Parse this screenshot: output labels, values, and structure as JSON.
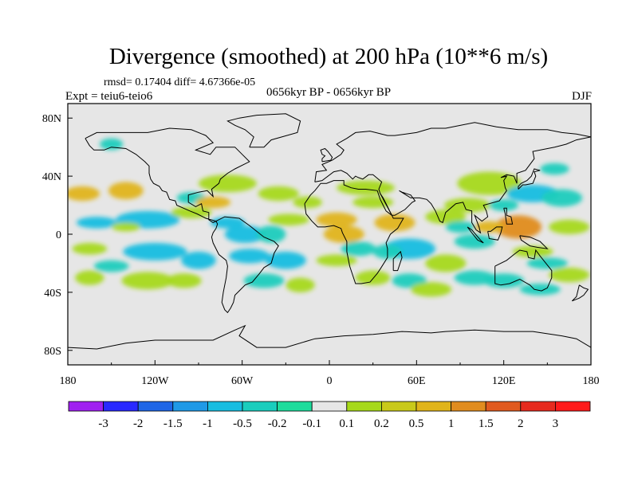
{
  "chart_data": {
    "type": "heatmap",
    "title": "Divergence (smoothed) at 200 hPa (10**6 m/s)",
    "stats_text": "rmsd= 0.17404 diff= 4.67366e-05",
    "left_label": "Expt = teiu6-teio6",
    "center_label": "0656kyr BP - 0656kyr BP",
    "right_label": "DJF",
    "x_ticks": [
      "180",
      "120W",
      "60W",
      "0",
      "60E",
      "120E",
      "180"
    ],
    "x_tick_values": [
      -180,
      -120,
      -60,
      0,
      60,
      120,
      180
    ],
    "y_ticks": [
      "80N",
      "40N",
      "0",
      "40S",
      "80S"
    ],
    "y_tick_values": [
      80,
      40,
      0,
      -40,
      -80
    ],
    "xlim": [
      -180,
      180
    ],
    "ylim": [
      -90,
      90
    ],
    "colorbar_labels": [
      "-3",
      "-2",
      "-1.5",
      "-1",
      "-0.5",
      "-0.2",
      "-0.1",
      "0.1",
      "0.2",
      "0.5",
      "1",
      "1.5",
      "2",
      "3"
    ],
    "colorbar_colors": [
      "#a020f0",
      "#2929ff",
      "#1f66e6",
      "#1f99e6",
      "#18bde0",
      "#1acdbd",
      "#1edc9c",
      "#e6e6e6",
      "#a6d91a",
      "#c9c91a",
      "#e0b41a",
      "#e08c1f",
      "#e05a1f",
      "#e62a1e",
      "#ff1a1a"
    ],
    "neutral_color": "#e6e6e6",
    "blobs": [
      {
        "lon": -170,
        "lat": 28,
        "rx": 12,
        "ry": 5,
        "level": 2
      },
      {
        "lon": -140,
        "lat": 30,
        "rx": 12,
        "ry": 6,
        "level": 2
      },
      {
        "lon": -160,
        "lat": 8,
        "rx": 14,
        "ry": 4,
        "level": -2
      },
      {
        "lon": -125,
        "lat": 10,
        "rx": 22,
        "ry": 6,
        "level": -2
      },
      {
        "lon": -140,
        "lat": 5,
        "rx": 10,
        "ry": 3,
        "level": 1
      },
      {
        "lon": -165,
        "lat": -10,
        "rx": 12,
        "ry": 4,
        "level": 1
      },
      {
        "lon": -120,
        "lat": -12,
        "rx": 22,
        "ry": 6,
        "level": -2
      },
      {
        "lon": -150,
        "lat": -22,
        "rx": 12,
        "ry": 4,
        "level": -1
      },
      {
        "lon": -165,
        "lat": -30,
        "rx": 10,
        "ry": 5,
        "level": 1
      },
      {
        "lon": -125,
        "lat": -32,
        "rx": 18,
        "ry": 6,
        "level": 1
      },
      {
        "lon": -100,
        "lat": -32,
        "rx": 12,
        "ry": 5,
        "level": 1
      },
      {
        "lon": -90,
        "lat": -18,
        "rx": 12,
        "ry": 6,
        "level": -2
      },
      {
        "lon": -150,
        "lat": 62,
        "rx": 8,
        "ry": 4,
        "level": -1
      },
      {
        "lon": -95,
        "lat": 25,
        "rx": 10,
        "ry": 4,
        "level": -1
      },
      {
        "lon": -70,
        "lat": 35,
        "rx": 20,
        "ry": 6,
        "level": 1
      },
      {
        "lon": -80,
        "lat": 22,
        "rx": 12,
        "ry": 4,
        "level": 2
      },
      {
        "lon": -95,
        "lat": 15,
        "rx": 14,
        "ry": 4,
        "level": 1
      },
      {
        "lon": -70,
        "lat": 8,
        "rx": 12,
        "ry": 4,
        "level": -2
      },
      {
        "lon": -58,
        "lat": 0,
        "rx": 14,
        "ry": 6,
        "level": -2
      },
      {
        "lon": -40,
        "lat": 0,
        "rx": 10,
        "ry": 6,
        "level": -1
      },
      {
        "lon": -55,
        "lat": -15,
        "rx": 14,
        "ry": 5,
        "level": -2
      },
      {
        "lon": -30,
        "lat": -18,
        "rx": 14,
        "ry": 6,
        "level": -2
      },
      {
        "lon": -45,
        "lat": -32,
        "rx": 14,
        "ry": 5,
        "level": -1
      },
      {
        "lon": -20,
        "lat": -35,
        "rx": 10,
        "ry": 5,
        "level": 1
      },
      {
        "lon": -35,
        "lat": 28,
        "rx": 14,
        "ry": 5,
        "level": 1
      },
      {
        "lon": -28,
        "lat": 10,
        "rx": 14,
        "ry": 4,
        "level": 1
      },
      {
        "lon": -15,
        "lat": 22,
        "rx": 10,
        "ry": 4,
        "level": 1
      },
      {
        "lon": 5,
        "lat": 10,
        "rx": 14,
        "ry": 5,
        "level": 2
      },
      {
        "lon": 10,
        "lat": 0,
        "rx": 14,
        "ry": 6,
        "level": 2
      },
      {
        "lon": 25,
        "lat": 32,
        "rx": 20,
        "ry": 5,
        "level": 1
      },
      {
        "lon": 30,
        "lat": 22,
        "rx": 14,
        "ry": 4,
        "level": 1
      },
      {
        "lon": 45,
        "lat": 8,
        "rx": 14,
        "ry": 6,
        "level": 2
      },
      {
        "lon": 55,
        "lat": -10,
        "rx": 18,
        "ry": 7,
        "level": -2
      },
      {
        "lon": 40,
        "lat": -12,
        "rx": 10,
        "ry": 5,
        "level": -1
      },
      {
        "lon": 20,
        "lat": -10,
        "rx": 12,
        "ry": 5,
        "level": -1
      },
      {
        "lon": 5,
        "lat": -18,
        "rx": 14,
        "ry": 4,
        "level": 1
      },
      {
        "lon": 30,
        "lat": -30,
        "rx": 12,
        "ry": 5,
        "level": 1
      },
      {
        "lon": 55,
        "lat": -32,
        "rx": 12,
        "ry": 5,
        "level": -1
      },
      {
        "lon": 70,
        "lat": -38,
        "rx": 14,
        "ry": 5,
        "level": 1
      },
      {
        "lon": 80,
        "lat": -20,
        "rx": 14,
        "ry": 6,
        "level": 1
      },
      {
        "lon": 80,
        "lat": 12,
        "rx": 14,
        "ry": 5,
        "level": 1
      },
      {
        "lon": 95,
        "lat": 20,
        "rx": 16,
        "ry": 5,
        "level": 1
      },
      {
        "lon": 90,
        "lat": 5,
        "rx": 10,
        "ry": 4,
        "level": -1
      },
      {
        "lon": 100,
        "lat": -5,
        "rx": 14,
        "ry": 5,
        "level": -1
      },
      {
        "lon": 110,
        "lat": 35,
        "rx": 22,
        "ry": 8,
        "level": 1
      },
      {
        "lon": 140,
        "lat": 28,
        "rx": 18,
        "ry": 6,
        "level": -2
      },
      {
        "lon": 160,
        "lat": 25,
        "rx": 14,
        "ry": 6,
        "level": -1
      },
      {
        "lon": 130,
        "lat": 5,
        "rx": 16,
        "ry": 8,
        "level": 3
      },
      {
        "lon": 110,
        "lat": 5,
        "rx": 10,
        "ry": 4,
        "level": 2
      },
      {
        "lon": 165,
        "lat": 5,
        "rx": 14,
        "ry": 5,
        "level": 1
      },
      {
        "lon": 140,
        "lat": -12,
        "rx": 14,
        "ry": 4,
        "level": 1
      },
      {
        "lon": 150,
        "lat": -20,
        "rx": 14,
        "ry": 4,
        "level": -1
      },
      {
        "lon": 165,
        "lat": -28,
        "rx": 14,
        "ry": 5,
        "level": 1
      },
      {
        "lon": 120,
        "lat": -32,
        "rx": 14,
        "ry": 5,
        "level": -1
      },
      {
        "lon": 100,
        "lat": -30,
        "rx": 14,
        "ry": 5,
        "level": -1
      },
      {
        "lon": 145,
        "lat": -38,
        "rx": 14,
        "ry": 4,
        "level": -1
      },
      {
        "lon": 155,
        "lat": 45,
        "rx": 10,
        "ry": 4,
        "level": -1
      },
      {
        "lon": 120,
        "lat": 20,
        "rx": 10,
        "ry": 4,
        "level": -1
      }
    ]
  }
}
